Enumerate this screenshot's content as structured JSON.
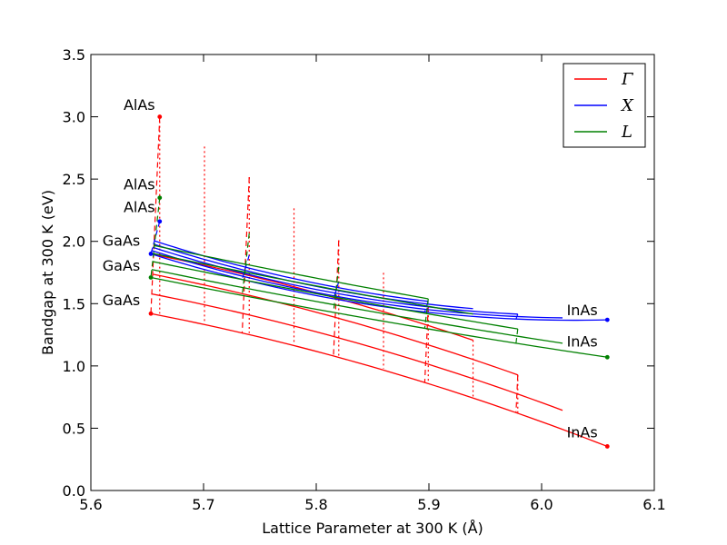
{
  "chart_data": {
    "type": "line",
    "title": "",
    "xlabel": "Lattice Parameter at 300 K (Å)",
    "ylabel": "Bandgap at 300 K (eV)",
    "xlim": [
      5.6,
      6.1
    ],
    "ylim": [
      0.0,
      3.5
    ],
    "xticks": [
      "5.6",
      "5.7",
      "5.8",
      "5.9",
      "6.0",
      "6.1"
    ],
    "yticks": [
      "0.0",
      "0.5",
      "1.0",
      "1.5",
      "2.0",
      "2.5",
      "3.0",
      "3.5"
    ],
    "grid": false,
    "legend_position": "top-right",
    "endpoints": {
      "AlAs": {
        "a": 5.6611
      },
      "GaAs": {
        "a": 5.65325
      },
      "InAs": {
        "a": 6.0583
      }
    },
    "series": [
      {
        "name": "Γ",
        "legend_label": "Γ",
        "color": "#ff0000",
        "gaps": {
          "AlAs": 3.0,
          "GaAs": 1.42,
          "InAs": 0.354
        }
      },
      {
        "name": "X",
        "legend_label": "X",
        "color": "#0000ff",
        "gaps": {
          "AlAs": 2.16,
          "GaAs": 1.9,
          "InAs": 1.37
        }
      },
      {
        "name": "L",
        "legend_label": "L",
        "color": "#008000",
        "gaps": {
          "AlAs": 2.35,
          "GaAs": 1.71,
          "InAs": 1.07
        }
      }
    ],
    "annotations": [
      {
        "text": "AlAs",
        "x": 5.643,
        "y": 3.1
      },
      {
        "text": "AlAs",
        "x": 5.643,
        "y": 2.46
      },
      {
        "text": "AlAs",
        "x": 5.643,
        "y": 2.28
      },
      {
        "text": "GaAs",
        "x": 5.627,
        "y": 2.01
      },
      {
        "text": "GaAs",
        "x": 5.627,
        "y": 1.81
      },
      {
        "text": "GaAs",
        "x": 5.627,
        "y": 1.53
      },
      {
        "text": "InAs",
        "x": 6.036,
        "y": 1.45
      },
      {
        "text": "InAs",
        "x": 6.036,
        "y": 1.2
      },
      {
        "text": "InAs",
        "x": 6.036,
        "y": 0.47
      }
    ]
  }
}
